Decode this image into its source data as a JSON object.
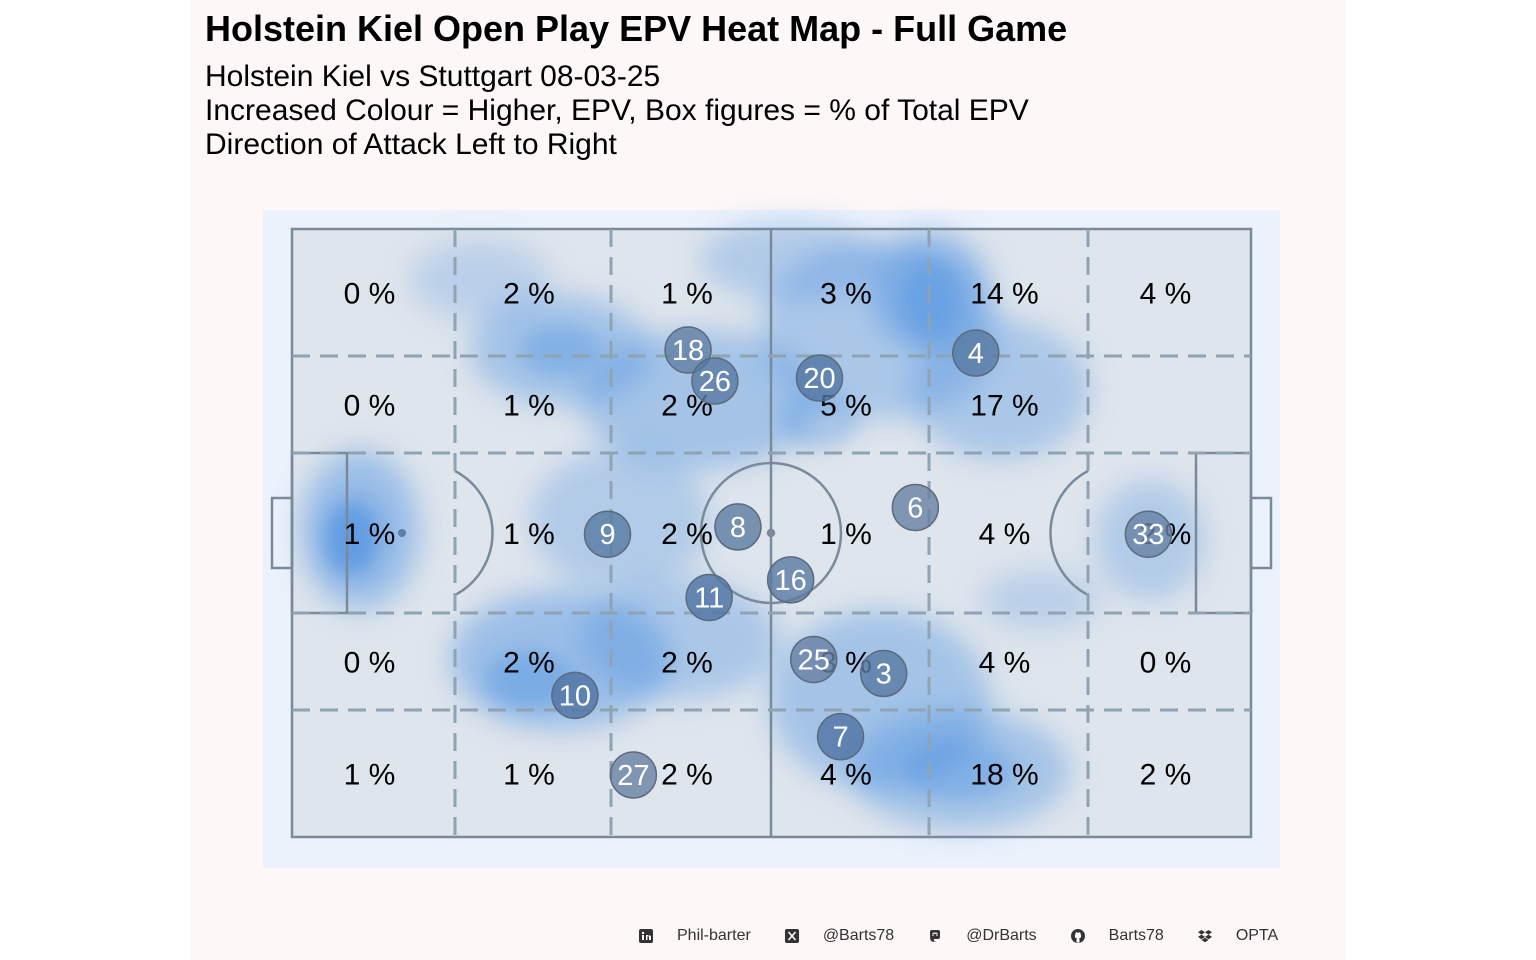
{
  "header": {
    "title": "Holstein Kiel Open Play EPV Heat Map - Full Game",
    "subtitle_lines": [
      "Holstein Kiel vs Stuttgart 08-03-25",
      "Increased Colour = Higher, EPV, Box figures = % of Total EPV",
      "Direction of Attack Left to Right"
    ]
  },
  "chart_data": {
    "type": "heatmap",
    "title": "Holstein Kiel Open Play EPV Heat Map - Full Game",
    "columns": 6,
    "rows": 5,
    "zone_labels": [
      [
        "0 %",
        "2 %",
        "1 %",
        "3 %",
        "14 %",
        "4 %"
      ],
      [
        "0 %",
        "1 %",
        "2 %",
        "5 %",
        "17 %",
        ""
      ],
      [
        "1 %",
        "1 %",
        "2 %",
        "1 %",
        "4 %",
        "2 %"
      ],
      [
        "0 %",
        "2 %",
        "2 %",
        "3 %",
        "4 %",
        "0 %"
      ],
      [
        "1 %",
        "1 %",
        "2 %",
        "4 %",
        "18 %",
        "2 %"
      ]
    ],
    "players": [
      {
        "number": "18",
        "x": 41.3,
        "y": 80.1,
        "shade": 0.55
      },
      {
        "number": "26",
        "x": 44.1,
        "y": 75.0,
        "shade": 0.45
      },
      {
        "number": "20",
        "x": 55.0,
        "y": 75.5,
        "shade": 0.4
      },
      {
        "number": "4",
        "x": 71.3,
        "y": 79.6,
        "shade": 0.45
      },
      {
        "number": "6",
        "x": 65.0,
        "y": 54.2,
        "shade": 0.6
      },
      {
        "number": "8",
        "x": 46.5,
        "y": 51.0,
        "shade": 0.5
      },
      {
        "number": "9",
        "x": 32.9,
        "y": 49.8,
        "shade": 0.45
      },
      {
        "number": "33",
        "x": 89.3,
        "y": 49.8,
        "shade": 0.6
      },
      {
        "number": "16",
        "x": 52.0,
        "y": 42.3,
        "shade": 0.45
      },
      {
        "number": "11",
        "x": 43.5,
        "y": 39.4,
        "shade": 0.35
      },
      {
        "number": "25",
        "x": 54.4,
        "y": 29.2,
        "shade": 0.6
      },
      {
        "number": "3",
        "x": 61.7,
        "y": 26.9,
        "shade": 0.45
      },
      {
        "number": "10",
        "x": 29.5,
        "y": 23.3,
        "shade": 0.35
      },
      {
        "number": "7",
        "x": 57.2,
        "y": 16.5,
        "shade": 0.35
      },
      {
        "number": "27",
        "x": 35.6,
        "y": 10.2,
        "shade": 0.6
      }
    ],
    "colors": {
      "page_background": "#fdf7f7",
      "pitch_surround": "#ecf2fb",
      "pitch_fill": "#dfe5ec",
      "pitch_lines": "#7a8a9a",
      "zone_lines": "#8fa3b3",
      "heat_base": "#4a90e2",
      "player_dark": "#2e5f9e",
      "player_light": "#8b98a8"
    }
  },
  "footer": {
    "items": [
      {
        "icon": "linkedin-icon",
        "label": "Phil-barter"
      },
      {
        "icon": "x-icon",
        "label": "@Barts78"
      },
      {
        "icon": "mastodon-icon",
        "label": "@DrBarts"
      },
      {
        "icon": "github-icon",
        "label": "Barts78"
      },
      {
        "icon": "dropbox-icon",
        "label": "OPTA"
      }
    ]
  }
}
